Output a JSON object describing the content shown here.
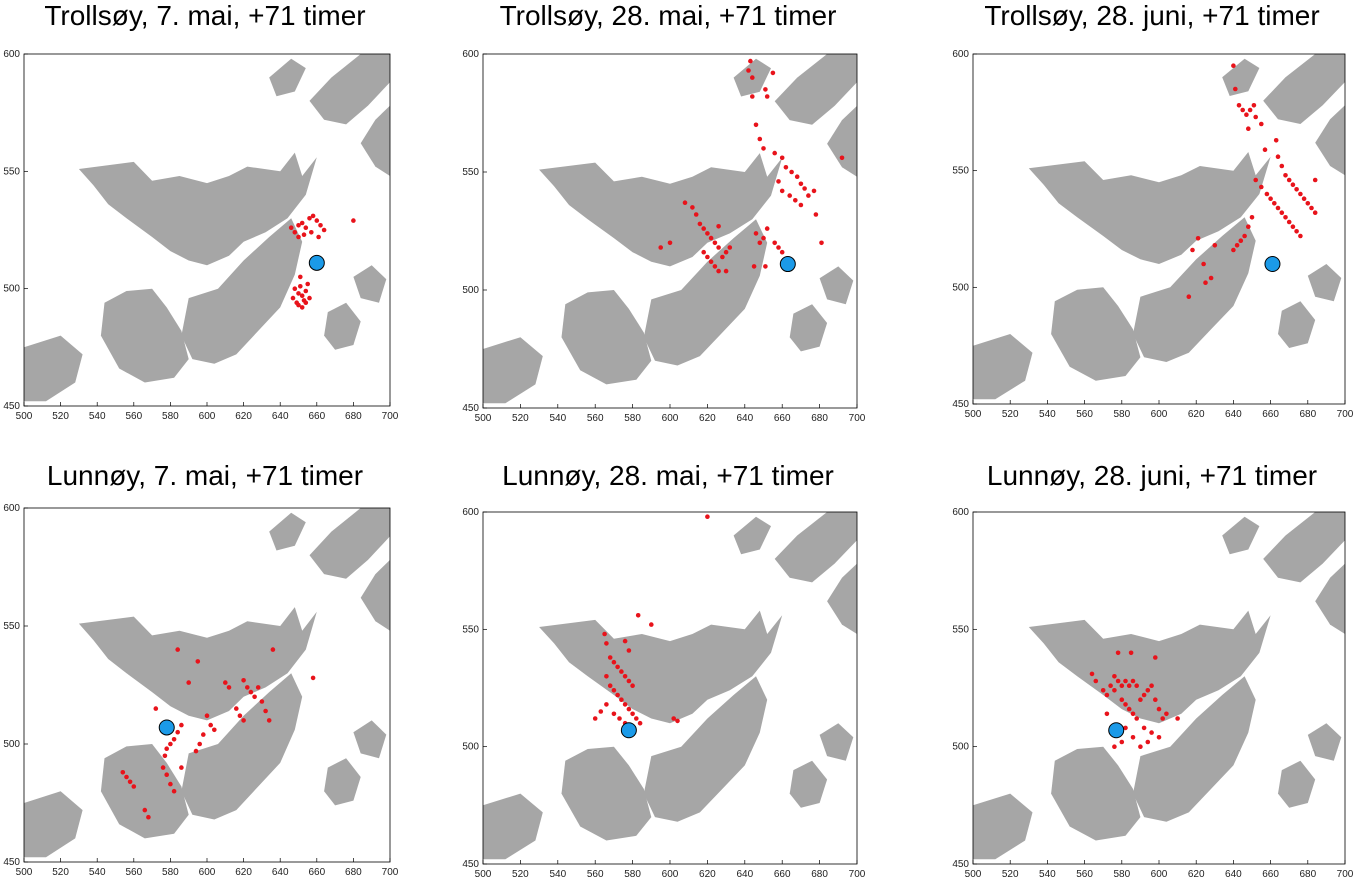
{
  "colors": {
    "land": "#a6a6a6",
    "water": "#ffffff",
    "particle": "#e8131b",
    "release_fill": "#1b9ae8",
    "release_stroke": "#000000"
  },
  "chart_data": [
    {
      "type": "scatter",
      "title": "Trollsøy, 7. mai, +71 timer",
      "xlim": [
        500,
        700
      ],
      "ylim": [
        450,
        600
      ],
      "xticks": [
        500,
        520,
        540,
        560,
        580,
        600,
        620,
        640,
        660,
        680,
        700
      ],
      "yticks": [
        450,
        500,
        550,
        600
      ],
      "release": {
        "x": 660,
        "y": 511
      },
      "particles": [
        [
          646,
          526
        ],
        [
          648,
          524
        ],
        [
          650,
          527
        ],
        [
          652,
          528
        ],
        [
          654,
          526
        ],
        [
          656,
          530
        ],
        [
          658,
          531
        ],
        [
          660,
          529
        ],
        [
          662,
          527
        ],
        [
          664,
          525
        ],
        [
          650,
          522
        ],
        [
          653,
          523
        ],
        [
          657,
          524
        ],
        [
          661,
          522
        ],
        [
          680,
          529
        ],
        [
          647,
          496
        ],
        [
          649,
          494
        ],
        [
          650,
          498
        ],
        [
          651,
          501
        ],
        [
          652,
          497
        ],
        [
          653,
          495
        ],
        [
          654,
          499
        ],
        [
          655,
          502
        ],
        [
          656,
          496
        ],
        [
          648,
          500
        ],
        [
          650,
          493
        ],
        [
          652,
          492
        ],
        [
          654,
          494
        ],
        [
          651,
          505
        ]
      ]
    },
    {
      "type": "scatter",
      "title": "Trollsøy, 28. mai, +71 timer",
      "xlim": [
        500,
        700
      ],
      "ylim": [
        450,
        600
      ],
      "xticks": [
        500,
        520,
        540,
        560,
        580,
        600,
        620,
        640,
        660,
        680,
        700
      ],
      "yticks": [
        450,
        500,
        550,
        600
      ],
      "release": {
        "x": 663,
        "y": 511
      },
      "particles": [
        [
          643,
          597
        ],
        [
          642,
          593
        ],
        [
          644,
          590
        ],
        [
          655,
          592
        ],
        [
          651,
          585
        ],
        [
          652,
          582
        ],
        [
          644,
          582
        ],
        [
          646,
          570
        ],
        [
          648,
          564
        ],
        [
          650,
          560
        ],
        [
          656,
          558
        ],
        [
          660,
          556
        ],
        [
          662,
          552
        ],
        [
          665,
          550
        ],
        [
          668,
          548
        ],
        [
          670,
          545
        ],
        [
          672,
          543
        ],
        [
          658,
          546
        ],
        [
          660,
          542
        ],
        [
          664,
          540
        ],
        [
          667,
          538
        ],
        [
          670,
          536
        ],
        [
          674,
          540
        ],
        [
          677,
          542
        ],
        [
          692,
          556
        ],
        [
          678,
          532
        ],
        [
          681,
          520
        ],
        [
          608,
          537
        ],
        [
          612,
          535
        ],
        [
          614,
          532
        ],
        [
          616,
          528
        ],
        [
          618,
          526
        ],
        [
          620,
          524
        ],
        [
          622,
          522
        ],
        [
          624,
          520
        ],
        [
          626,
          518
        ],
        [
          618,
          516
        ],
        [
          620,
          514
        ],
        [
          622,
          512
        ],
        [
          624,
          510
        ],
        [
          626,
          508
        ],
        [
          628,
          514
        ],
        [
          630,
          516
        ],
        [
          632,
          518
        ],
        [
          600,
          520
        ],
        [
          595,
          518
        ],
        [
          630,
          508
        ],
        [
          646,
          524
        ],
        [
          648,
          520
        ],
        [
          650,
          522
        ],
        [
          652,
          526
        ],
        [
          656,
          520
        ],
        [
          658,
          518
        ],
        [
          660,
          516
        ],
        [
          645,
          510
        ],
        [
          651,
          510
        ],
        [
          626,
          527
        ]
      ]
    },
    {
      "type": "scatter",
      "title": "Trollsøy, 28. juni, +71 timer",
      "xlim": [
        500,
        700
      ],
      "ylim": [
        450,
        600
      ],
      "xticks": [
        500,
        520,
        540,
        560,
        580,
        600,
        620,
        640,
        660,
        680,
        700
      ],
      "yticks": [
        450,
        500,
        550,
        600
      ],
      "release": {
        "x": 661,
        "y": 510
      },
      "particles": [
        [
          640,
          595
        ],
        [
          641,
          585
        ],
        [
          643,
          578
        ],
        [
          645,
          576
        ],
        [
          647,
          574
        ],
        [
          649,
          576
        ],
        [
          651,
          578
        ],
        [
          652,
          573
        ],
        [
          655,
          570
        ],
        [
          648,
          568
        ],
        [
          663,
          563
        ],
        [
          657,
          559
        ],
        [
          664,
          556
        ],
        [
          666,
          552
        ],
        [
          668,
          548
        ],
        [
          670,
          546
        ],
        [
          672,
          544
        ],
        [
          674,
          542
        ],
        [
          676,
          540
        ],
        [
          678,
          538
        ],
        [
          680,
          536
        ],
        [
          682,
          534
        ],
        [
          684,
          532
        ],
        [
          652,
          546
        ],
        [
          655,
          543
        ],
        [
          658,
          540
        ],
        [
          660,
          538
        ],
        [
          662,
          536
        ],
        [
          664,
          534
        ],
        [
          666,
          532
        ],
        [
          668,
          530
        ],
        [
          670,
          528
        ],
        [
          672,
          526
        ],
        [
          674,
          524
        ],
        [
          676,
          522
        ],
        [
          650,
          530
        ],
        [
          648,
          526
        ],
        [
          646,
          522
        ],
        [
          644,
          520
        ],
        [
          642,
          518
        ],
        [
          640,
          516
        ],
        [
          621,
          521
        ],
        [
          618,
          516
        ],
        [
          624,
          510
        ],
        [
          628,
          504
        ],
        [
          625,
          502
        ],
        [
          616,
          496
        ],
        [
          630,
          518
        ],
        [
          684,
          546
        ]
      ]
    },
    {
      "type": "scatter",
      "title": "Lunnøy, 7. mai, +71 timer",
      "xlim": [
        500,
        700
      ],
      "ylim": [
        450,
        600
      ],
      "xticks": [
        500,
        520,
        540,
        560,
        580,
        600,
        620,
        640,
        660,
        680,
        700
      ],
      "yticks": [
        450,
        500,
        550,
        600
      ],
      "release": {
        "x": 578,
        "y": 507
      },
      "particles": [
        [
          584,
          540
        ],
        [
          595,
          535
        ],
        [
          590,
          526
        ],
        [
          610,
          526
        ],
        [
          612,
          524
        ],
        [
          620,
          527
        ],
        [
          622,
          524
        ],
        [
          624,
          522
        ],
        [
          626,
          520
        ],
        [
          628,
          524
        ],
        [
          630,
          518
        ],
        [
          632,
          514
        ],
        [
          634,
          510
        ],
        [
          636,
          540
        ],
        [
          658,
          528
        ],
        [
          600,
          512
        ],
        [
          602,
          508
        ],
        [
          604,
          506
        ],
        [
          598,
          504
        ],
        [
          596,
          500
        ],
        [
          594,
          497
        ],
        [
          586,
          508
        ],
        [
          584,
          505
        ],
        [
          582,
          502
        ],
        [
          580,
          500
        ],
        [
          578,
          498
        ],
        [
          577,
          495
        ],
        [
          576,
          490
        ],
        [
          578,
          487
        ],
        [
          580,
          483
        ],
        [
          582,
          480
        ],
        [
          572,
          515
        ],
        [
          554,
          488
        ],
        [
          556,
          486
        ],
        [
          558,
          484
        ],
        [
          560,
          482
        ],
        [
          566,
          472
        ],
        [
          568,
          469
        ],
        [
          586,
          490
        ],
        [
          616,
          515
        ],
        [
          618,
          512
        ],
        [
          620,
          510
        ]
      ]
    },
    {
      "type": "scatter",
      "title": "Lunnøy, 28. mai, +71 timer",
      "xlim": [
        500,
        700
      ],
      "ylim": [
        450,
        600
      ],
      "xticks": [
        500,
        520,
        540,
        560,
        580,
        600,
        620,
        640,
        660,
        680,
        700
      ],
      "yticks": [
        450,
        500,
        550,
        600
      ],
      "release": {
        "x": 578,
        "y": 507
      },
      "particles": [
        [
          620,
          598
        ],
        [
          583,
          556
        ],
        [
          590,
          552
        ],
        [
          565,
          548
        ],
        [
          566,
          544
        ],
        [
          576,
          545
        ],
        [
          578,
          541
        ],
        [
          568,
          538
        ],
        [
          570,
          536
        ],
        [
          572,
          534
        ],
        [
          574,
          532
        ],
        [
          576,
          530
        ],
        [
          578,
          528
        ],
        [
          580,
          526
        ],
        [
          566,
          530
        ],
        [
          568,
          526
        ],
        [
          570,
          524
        ],
        [
          572,
          522
        ],
        [
          574,
          520
        ],
        [
          576,
          518
        ],
        [
          578,
          516
        ],
        [
          580,
          514
        ],
        [
          570,
          514
        ],
        [
          573,
          512
        ],
        [
          576,
          510
        ],
        [
          566,
          518
        ],
        [
          563,
          515
        ],
        [
          560,
          512
        ],
        [
          602,
          512
        ],
        [
          604,
          511
        ],
        [
          582,
          512
        ],
        [
          584,
          510
        ]
      ]
    },
    {
      "type": "scatter",
      "title": "Lunnøy, 28. juni, +71 timer",
      "xlim": [
        500,
        700
      ],
      "ylim": [
        450,
        600
      ],
      "xticks": [
        500,
        520,
        540,
        560,
        580,
        600,
        620,
        640,
        660,
        680,
        700
      ],
      "yticks": [
        450,
        500,
        550,
        600
      ],
      "release": {
        "x": 577,
        "y": 507
      },
      "particles": [
        [
          578,
          540
        ],
        [
          585,
          540
        ],
        [
          598,
          538
        ],
        [
          576,
          530
        ],
        [
          578,
          528
        ],
        [
          580,
          526
        ],
        [
          582,
          528
        ],
        [
          584,
          526
        ],
        [
          586,
          528
        ],
        [
          588,
          526
        ],
        [
          564,
          531
        ],
        [
          566,
          528
        ],
        [
          570,
          524
        ],
        [
          572,
          522
        ],
        [
          574,
          526
        ],
        [
          576,
          524
        ],
        [
          580,
          520
        ],
        [
          582,
          518
        ],
        [
          584,
          516
        ],
        [
          586,
          514
        ],
        [
          588,
          512
        ],
        [
          590,
          520
        ],
        [
          592,
          522
        ],
        [
          594,
          524
        ],
        [
          596,
          526
        ],
        [
          598,
          520
        ],
        [
          600,
          516
        ],
        [
          602,
          512
        ],
        [
          604,
          514
        ],
        [
          610,
          512
        ],
        [
          596,
          506
        ],
        [
          594,
          502
        ],
        [
          590,
          500
        ],
        [
          586,
          504
        ],
        [
          580,
          502
        ],
        [
          576,
          500
        ],
        [
          572,
          514
        ],
        [
          582,
          508
        ],
        [
          600,
          504
        ],
        [
          592,
          508
        ]
      ]
    }
  ]
}
